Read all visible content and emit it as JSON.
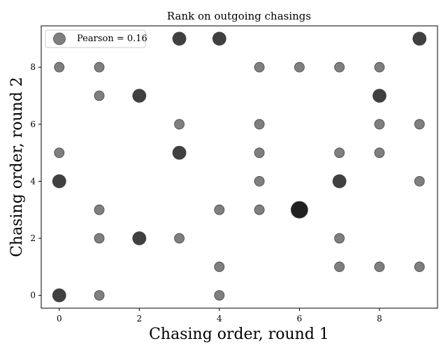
{
  "chart_data": {
    "type": "scatter",
    "title": "Rank on outgoing chasings",
    "xlabel": "Chasing order, round 1",
    "ylabel": "Chasing order, round 2",
    "xlim": [
      -0.45,
      9.45
    ],
    "ylim": [
      -0.45,
      9.45
    ],
    "xticks": [
      0,
      2,
      4,
      6,
      8
    ],
    "yticks": [
      0,
      2,
      4,
      6,
      8
    ],
    "legend": {
      "label": "Pearson = 0.16",
      "placement": "top-left"
    },
    "grid": false,
    "points": [
      {
        "x": 0,
        "y": 8,
        "count": 1
      },
      {
        "x": 1,
        "y": 8,
        "count": 1
      },
      {
        "x": 3,
        "y": 9,
        "count": 2
      },
      {
        "x": 4,
        "y": 9,
        "count": 2
      },
      {
        "x": 9,
        "y": 9,
        "count": 2
      },
      {
        "x": 5,
        "y": 8,
        "count": 1
      },
      {
        "x": 6,
        "y": 8,
        "count": 1
      },
      {
        "x": 7,
        "y": 8,
        "count": 1
      },
      {
        "x": 8,
        "y": 8,
        "count": 1
      },
      {
        "x": 1,
        "y": 7,
        "count": 1
      },
      {
        "x": 2,
        "y": 7,
        "count": 2
      },
      {
        "x": 8,
        "y": 7,
        "count": 2
      },
      {
        "x": 3,
        "y": 6,
        "count": 1
      },
      {
        "x": 5,
        "y": 6,
        "count": 1
      },
      {
        "x": 8,
        "y": 6,
        "count": 1
      },
      {
        "x": 9,
        "y": 6,
        "count": 1
      },
      {
        "x": 0,
        "y": 5,
        "count": 1
      },
      {
        "x": 3,
        "y": 5,
        "count": 2
      },
      {
        "x": 5,
        "y": 5,
        "count": 1
      },
      {
        "x": 7,
        "y": 5,
        "count": 1
      },
      {
        "x": 8,
        "y": 5,
        "count": 1
      },
      {
        "x": 0,
        "y": 4,
        "count": 2
      },
      {
        "x": 5,
        "y": 4,
        "count": 1
      },
      {
        "x": 7,
        "y": 4,
        "count": 2
      },
      {
        "x": 9,
        "y": 4,
        "count": 1
      },
      {
        "x": 1,
        "y": 3,
        "count": 1
      },
      {
        "x": 4,
        "y": 3,
        "count": 1
      },
      {
        "x": 5,
        "y": 3,
        "count": 1
      },
      {
        "x": 6,
        "y": 3,
        "count": 3
      },
      {
        "x": 1,
        "y": 2,
        "count": 1
      },
      {
        "x": 2,
        "y": 2,
        "count": 2
      },
      {
        "x": 3,
        "y": 2,
        "count": 1
      },
      {
        "x": 7,
        "y": 2,
        "count": 1
      },
      {
        "x": 4,
        "y": 1,
        "count": 1
      },
      {
        "x": 7,
        "y": 1,
        "count": 1
      },
      {
        "x": 8,
        "y": 1,
        "count": 1
      },
      {
        "x": 9,
        "y": 1,
        "count": 1
      },
      {
        "x": 0,
        "y": 0,
        "count": 2
      },
      {
        "x": 1,
        "y": 0,
        "count": 1
      },
      {
        "x": 4,
        "y": 0,
        "count": 1
      }
    ]
  }
}
